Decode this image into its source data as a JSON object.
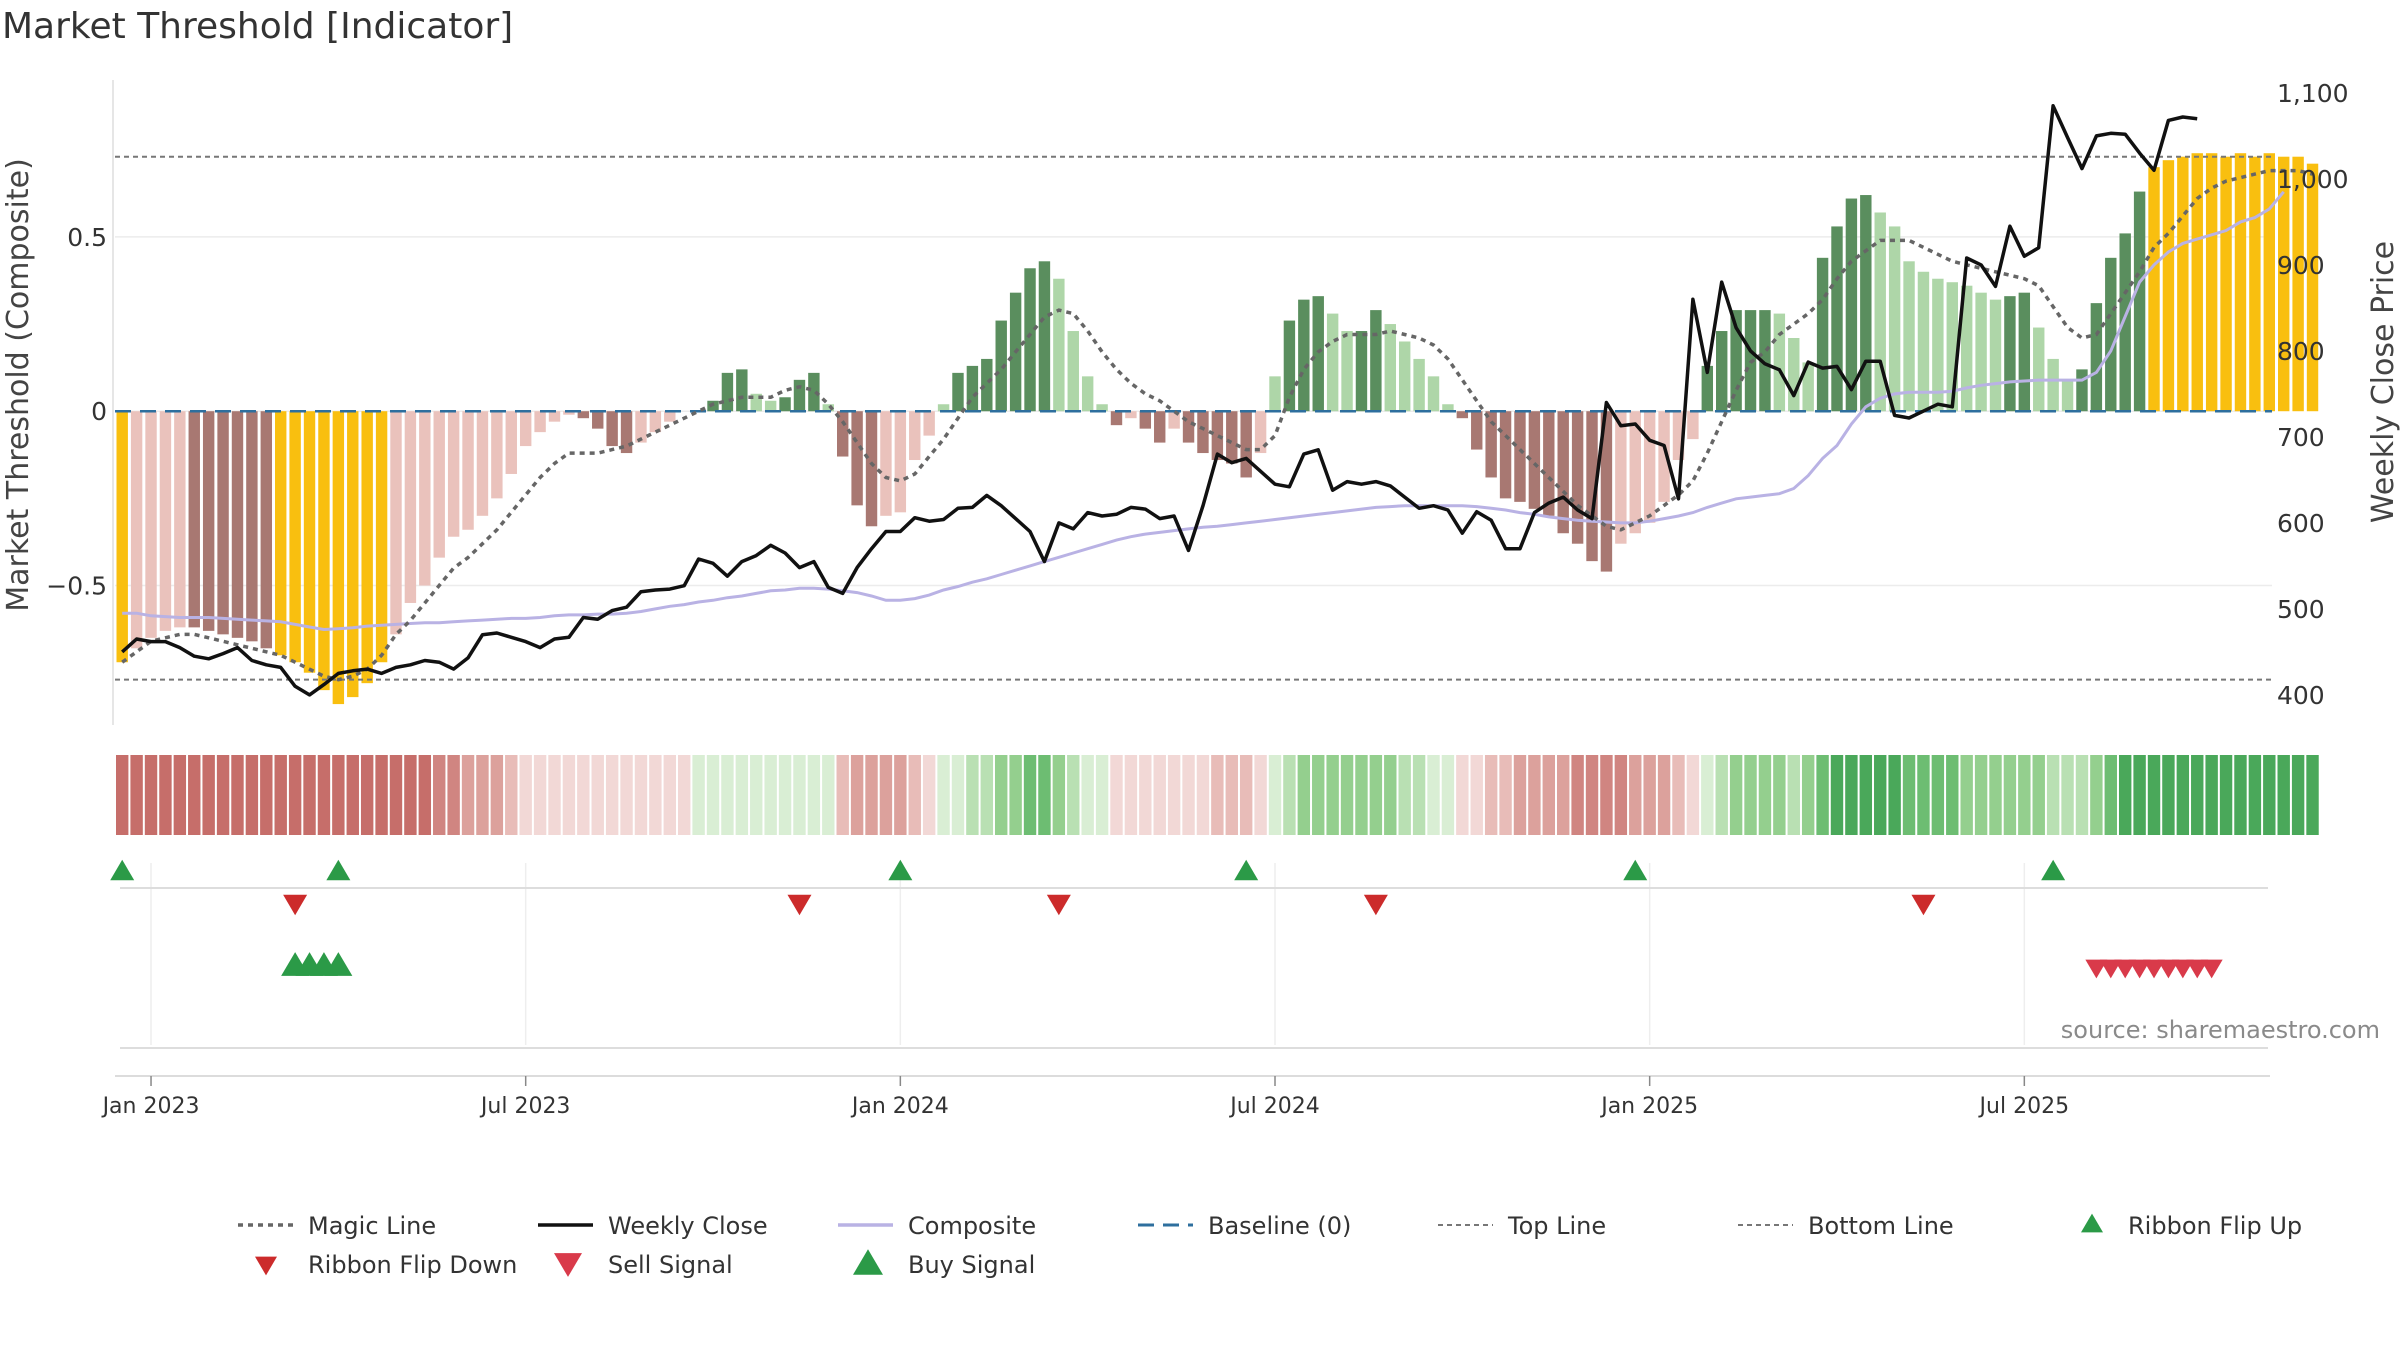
{
  "chart_data": {
    "type": "bar",
    "title": "Market Threshold [Indicator]",
    "ylabel_left": "Market Threshold (Composite)",
    "ylabel_right": "Weekly Close Price",
    "ylim_left": [
      -0.9,
      0.95
    ],
    "ylim_right": [
      365,
      1115
    ],
    "yticks_left": [
      {
        "v": 0.5,
        "label": "0.5"
      },
      {
        "v": 0,
        "label": "0"
      },
      {
        "v": -0.5,
        "label": "−0.5"
      }
    ],
    "yticks_right": [
      {
        "v": 1100,
        "label": "1,100"
      },
      {
        "v": 1000,
        "label": "1,000"
      },
      {
        "v": 900,
        "label": "900"
      },
      {
        "v": 800,
        "label": "800"
      },
      {
        "v": 700,
        "label": "700"
      },
      {
        "v": 600,
        "label": "600"
      },
      {
        "v": 500,
        "label": "500"
      },
      {
        "v": 400,
        "label": "400"
      }
    ],
    "xticks": [
      {
        "w": 2.5,
        "label": "Jan 2023"
      },
      {
        "w": 28.5,
        "label": "Jul 2023"
      },
      {
        "w": 54.5,
        "label": "Jan 2024"
      },
      {
        "w": 80.5,
        "label": "Jul 2024"
      },
      {
        "w": 106.5,
        "label": "Jan 2025"
      },
      {
        "w": 132.5,
        "label": "Jul 2025"
      }
    ],
    "top_line": 0.73,
    "bottom_line": -0.77,
    "baseline": 0,
    "composite_bars": [
      -0.72,
      -0.68,
      -0.65,
      -0.63,
      -0.62,
      -0.62,
      -0.63,
      -0.64,
      -0.65,
      -0.66,
      -0.68,
      -0.7,
      -0.72,
      -0.75,
      -0.8,
      -0.84,
      -0.82,
      -0.78,
      -0.72,
      -0.64,
      -0.55,
      -0.5,
      -0.42,
      -0.36,
      -0.34,
      -0.3,
      -0.25,
      -0.18,
      -0.1,
      -0.06,
      -0.03,
      -0.01,
      -0.02,
      -0.05,
      -0.1,
      -0.12,
      -0.09,
      -0.06,
      -0.03,
      0.0,
      0.0,
      0.03,
      0.11,
      0.12,
      0.05,
      0.03,
      0.04,
      0.09,
      0.11,
      0.02,
      -0.13,
      -0.27,
      -0.33,
      -0.3,
      -0.29,
      -0.14,
      -0.07,
      0.02,
      0.11,
      0.13,
      0.15,
      0.26,
      0.34,
      0.41,
      0.43,
      0.38,
      0.23,
      0.1,
      0.02,
      -0.04,
      -0.02,
      -0.05,
      -0.09,
      -0.05,
      -0.09,
      -0.12,
      -0.14,
      -0.15,
      -0.19,
      -0.12,
      0.1,
      0.26,
      0.32,
      0.33,
      0.28,
      0.23,
      0.23,
      0.29,
      0.25,
      0.2,
      0.15,
      0.1,
      0.02,
      -0.02,
      -0.11,
      -0.19,
      -0.25,
      -0.26,
      -0.28,
      -0.3,
      -0.35,
      -0.38,
      -0.43,
      -0.46,
      -0.38,
      -0.35,
      -0.32,
      -0.26,
      -0.14,
      -0.08,
      0.13,
      0.23,
      0.29,
      0.29,
      0.29,
      0.28,
      0.21,
      0.14,
      0.44,
      0.53,
      0.61,
      0.62,
      0.57,
      0.53,
      0.43,
      0.4,
      0.38,
      0.37,
      0.36,
      0.34,
      0.32,
      0.33,
      0.34,
      0.24,
      0.15,
      0.09,
      0.12,
      0.31,
      0.44,
      0.51,
      0.63,
      0.7,
      0.72,
      0.73,
      0.74,
      0.74,
      0.73,
      0.74,
      0.73,
      0.74,
      0.73,
      0.73,
      0.71
    ],
    "weekly_close": [
      450,
      465,
      462,
      462,
      455,
      445,
      442,
      448,
      455,
      440,
      435,
      432,
      410,
      400,
      412,
      425,
      428,
      430,
      425,
      432,
      435,
      440,
      438,
      430,
      443,
      470,
      472,
      467,
      462,
      455,
      465,
      467,
      490,
      488,
      498,
      502,
      520,
      522,
      523,
      527,
      558,
      553,
      538,
      555,
      562,
      574,
      565,
      548,
      555,
      525,
      518,
      548,
      570,
      590,
      590,
      606,
      602,
      604,
      617,
      618,
      632,
      620,
      605,
      590,
      555,
      600,
      593,
      612,
      608,
      610,
      618,
      616,
      605,
      608,
      568,
      620,
      680,
      670,
      675,
      660,
      645,
      642,
      680,
      685,
      638,
      648,
      645,
      648,
      643,
      630,
      617,
      620,
      615,
      588,
      613,
      603,
      570,
      570,
      612,
      623,
      630,
      615,
      605,
      740,
      713,
      715,
      696,
      690,
      628,
      860,
      775,
      880,
      827,
      800,
      785,
      778,
      748,
      787,
      780,
      782,
      755,
      788,
      788,
      725,
      722,
      730,
      738,
      735,
      908,
      900,
      875,
      945,
      910,
      920,
      1085,
      1048,
      1012,
      1050,
      1053,
      1052,
      1030,
      1010,
      1068,
      1072,
      1070
    ],
    "composite_line": [
      495,
      495,
      492,
      491,
      490,
      490,
      490,
      489,
      488,
      487,
      486,
      485,
      482,
      479,
      476,
      477,
      478,
      480,
      481,
      482,
      483,
      484,
      484,
      485,
      486,
      487,
      488,
      489,
      489,
      490,
      492,
      493,
      493,
      494,
      494,
      495,
      497,
      500,
      503,
      505,
      508,
      510,
      513,
      515,
      518,
      521,
      522,
      524,
      524,
      523,
      521,
      519,
      515,
      510,
      510,
      512,
      516,
      522,
      526,
      531,
      535,
      540,
      545,
      550,
      555,
      560,
      565,
      570,
      575,
      580,
      584,
      587,
      589,
      591,
      593,
      595,
      596,
      598,
      600,
      602,
      604,
      606,
      608,
      610,
      612,
      614,
      616,
      618,
      619,
      620,
      620,
      620,
      620,
      620,
      619,
      617,
      615,
      612,
      610,
      607,
      605,
      603,
      602,
      601,
      600,
      600,
      602,
      605,
      608,
      612,
      618,
      623,
      628,
      630,
      632,
      634,
      640,
      655,
      675,
      690,
      715,
      735,
      745,
      750,
      752,
      752,
      752,
      753,
      757,
      760,
      762,
      764,
      765,
      766,
      766,
      766,
      766,
      775,
      800,
      840,
      880,
      900,
      915,
      925,
      930,
      935,
      940,
      950,
      955,
      965,
      985
    ],
    "magic_line": [
      -0.72,
      -0.69,
      -0.66,
      -0.65,
      -0.64,
      -0.64,
      -0.65,
      -0.66,
      -0.67,
      -0.68,
      -0.69,
      -0.7,
      -0.72,
      -0.74,
      -0.76,
      -0.77,
      -0.76,
      -0.74,
      -0.7,
      -0.64,
      -0.6,
      -0.55,
      -0.5,
      -0.45,
      -0.42,
      -0.38,
      -0.34,
      -0.29,
      -0.24,
      -0.19,
      -0.15,
      -0.12,
      -0.12,
      -0.12,
      -0.11,
      -0.1,
      -0.08,
      -0.06,
      -0.04,
      -0.02,
      0.0,
      0.02,
      0.03,
      0.04,
      0.04,
      0.04,
      0.06,
      0.07,
      0.06,
      0.02,
      -0.03,
      -0.09,
      -0.15,
      -0.19,
      -0.2,
      -0.18,
      -0.13,
      -0.08,
      -0.02,
      0.04,
      0.08,
      0.12,
      0.17,
      0.22,
      0.27,
      0.29,
      0.28,
      0.23,
      0.17,
      0.12,
      0.08,
      0.05,
      0.03,
      0.0,
      -0.03,
      -0.05,
      -0.07,
      -0.09,
      -0.11,
      -0.11,
      -0.07,
      0.04,
      0.12,
      0.17,
      0.2,
      0.22,
      0.22,
      0.22,
      0.23,
      0.22,
      0.21,
      0.19,
      0.15,
      0.09,
      0.03,
      -0.03,
      -0.07,
      -0.11,
      -0.15,
      -0.19,
      -0.23,
      -0.27,
      -0.3,
      -0.33,
      -0.34,
      -0.32,
      -0.3,
      -0.27,
      -0.24,
      -0.2,
      -0.12,
      -0.03,
      0.06,
      0.14,
      0.17,
      0.22,
      0.25,
      0.28,
      0.32,
      0.38,
      0.43,
      0.46,
      0.49,
      0.49,
      0.49,
      0.47,
      0.45,
      0.43,
      0.42,
      0.41,
      0.4,
      0.39,
      0.38,
      0.36,
      0.3,
      0.24,
      0.21,
      0.22,
      0.28,
      0.34,
      0.4,
      0.47,
      0.51,
      0.56,
      0.61,
      0.64,
      0.66,
      0.67,
      0.68,
      0.69,
      0.69,
      0.69,
      0.68
    ],
    "ribbon_flip_up": [
      0.5,
      15.5,
      54.5,
      78.5,
      105.5,
      134.5
    ],
    "ribbon_flip_down": [
      12.5,
      47.5,
      65.5,
      87.5,
      125.5
    ],
    "buy_signals": [
      12.5,
      13.5,
      14.5,
      15.5
    ],
    "sell_signals": [
      137.5,
      138.5,
      139.5,
      140.5,
      141.5,
      142.5,
      143.5,
      144.5,
      145.5
    ],
    "legend": [
      {
        "key": "magic",
        "label": "Magic Line"
      },
      {
        "key": "close",
        "label": "Weekly Close"
      },
      {
        "key": "composite",
        "label": "Composite"
      },
      {
        "key": "baseline",
        "label": "Baseline (0)"
      },
      {
        "key": "top",
        "label": "Top Line"
      },
      {
        "key": "bottom",
        "label": "Bottom Line"
      },
      {
        "key": "flipup",
        "label": "Ribbon Flip Up"
      },
      {
        "key": "flipdown",
        "label": "Ribbon Flip Down"
      },
      {
        "key": "sell",
        "label": "Sell Signal"
      },
      {
        "key": "buy",
        "label": "Buy Signal"
      }
    ],
    "colors": {
      "strong_bull": "#5a8e5e",
      "weak_bull": "#aed6a8",
      "strong_bear": "#a87872",
      "weak_bear": "#eac2bc",
      "extreme": "#f9bf0f",
      "close": "#111111",
      "composite": "#b9b2e4",
      "magic": "#666666",
      "baseline": "#2e6f9e",
      "guide": "#777777",
      "flip_up": "#2b9a47",
      "flip_down": "#cc2b2b",
      "buy": "#2b9a47",
      "sell": "#d93a4a"
    }
  },
  "source": "source: sharemaestro.com"
}
